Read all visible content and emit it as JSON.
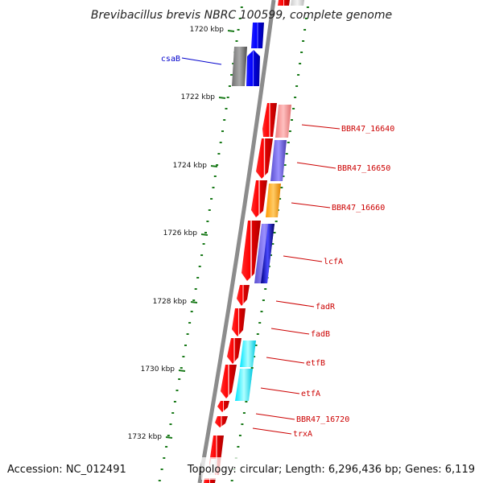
{
  "title": "Brevibacillus brevis NBRC 100599, complete genome",
  "footer": {
    "accession": "Accession: NC_012491",
    "topology": "Topology: circular; Length: 6,296,436 bp; Genes: 6,119"
  },
  "colors": {
    "backbone": "#8c8c8c",
    "tick": "#1a7a1a",
    "label_red": "#cc0000",
    "label_blue": "#0000cc"
  },
  "ticks": [
    {
      "label": "1720 kbp"
    },
    {
      "label": "1722 kbp"
    },
    {
      "label": "1724 kbp"
    },
    {
      "label": "1726 kbp"
    },
    {
      "label": "1728 kbp"
    },
    {
      "label": "1730 kbp"
    },
    {
      "label": "1732 kbp"
    }
  ],
  "labels": [
    {
      "text": "csaB",
      "color": "#0000cc"
    },
    {
      "text": "BBR47_16640",
      "color": "#cc0000"
    },
    {
      "text": "BBR47_16650",
      "color": "#cc0000"
    },
    {
      "text": "BBR47_16660",
      "color": "#cc0000"
    },
    {
      "text": "lcfA",
      "color": "#cc0000"
    },
    {
      "text": "fadR",
      "color": "#cc0000"
    },
    {
      "text": "fadB",
      "color": "#cc0000"
    },
    {
      "text": "etfB",
      "color": "#cc0000"
    },
    {
      "text": "etfA",
      "color": "#cc0000"
    },
    {
      "text": "BBR47_16720",
      "color": "#cc0000"
    },
    {
      "text": "trxA",
      "color": "#cc0000"
    }
  ]
}
